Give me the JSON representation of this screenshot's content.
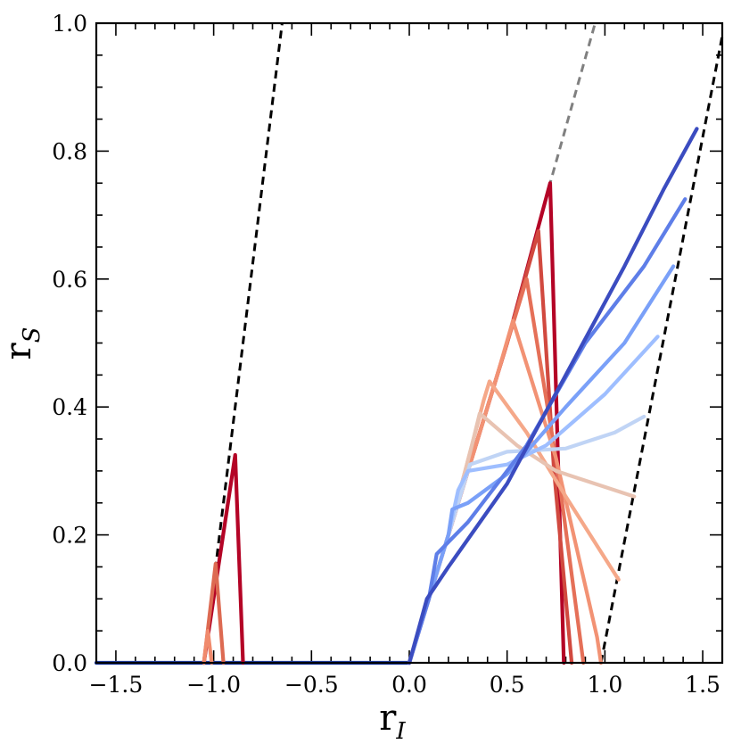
{
  "chart_data": {
    "type": "line",
    "xlabel": "r",
    "xlabel_sub": "I",
    "ylabel": "r",
    "ylabel_sub": "S",
    "xlim": [
      -1.6,
      1.6
    ],
    "ylim": [
      0.0,
      1.0
    ],
    "xticks": [
      -1.5,
      -1.0,
      -0.5,
      0.0,
      0.5,
      1.0,
      1.5
    ],
    "xtick_labels": [
      "−1.5",
      "−1.0",
      "−0.5",
      "0.0",
      "0.5",
      "1.0",
      "1.5"
    ],
    "yticks": [
      0.0,
      0.2,
      0.4,
      0.6,
      0.8,
      1.0
    ],
    "ytick_labels": [
      "0.0",
      "0.2",
      "0.4",
      "0.6",
      "0.8",
      "1.0"
    ],
    "grid": false,
    "legend": "none",
    "series": [
      {
        "color": "#000000",
        "dash": true,
        "points": [
          [
            -1.05,
            0.0
          ],
          [
            -0.65,
            1.0
          ]
        ]
      },
      {
        "color": "#808080",
        "dash": true,
        "points": [
          [
            0.0,
            0.0
          ],
          [
            0.1,
            0.1
          ],
          [
            0.2,
            0.2
          ],
          [
            0.5,
            0.5
          ],
          [
            0.72,
            0.75
          ],
          [
            0.95,
            1.0
          ]
        ]
      },
      {
        "color": "#000000",
        "dash": true,
        "points": [
          [
            0.98,
            0.0
          ],
          [
            1.6,
            0.98
          ]
        ]
      },
      {
        "color": "#1f3fa8",
        "points": [
          [
            -1.6,
            0.0
          ],
          [
            0.0,
            0.0
          ]
        ]
      },
      {
        "color": "#b40426",
        "points": [
          [
            -1.05,
            0.0
          ],
          [
            -0.89,
            0.325
          ],
          [
            -0.85,
            0.0
          ]
        ]
      },
      {
        "color": "#dd6a52",
        "points": [
          [
            -1.05,
            0.0
          ],
          [
            -0.99,
            0.155
          ],
          [
            -0.95,
            0.0
          ]
        ]
      },
      {
        "color": "#f08a6c",
        "points": [
          [
            -1.05,
            0.0
          ],
          [
            -1.03,
            0.05
          ],
          [
            -1.01,
            0.0
          ]
        ]
      },
      {
        "color": "#b40426",
        "points": [
          [
            0.0,
            0.0
          ],
          [
            0.2,
            0.2
          ],
          [
            0.5,
            0.5
          ],
          [
            0.72,
            0.75
          ],
          [
            0.79,
            0.0
          ]
        ]
      },
      {
        "color": "#d1493f",
        "points": [
          [
            0.0,
            0.0
          ],
          [
            0.2,
            0.2
          ],
          [
            0.5,
            0.5
          ],
          [
            0.66,
            0.675
          ],
          [
            0.74,
            0.3
          ],
          [
            0.83,
            0.0
          ]
        ]
      },
      {
        "color": "#e57058",
        "points": [
          [
            0.0,
            0.0
          ],
          [
            0.2,
            0.2
          ],
          [
            0.5,
            0.5
          ],
          [
            0.6,
            0.6
          ],
          [
            0.76,
            0.3
          ],
          [
            0.89,
            0.0
          ]
        ]
      },
      {
        "color": "#f29274",
        "points": [
          [
            0.0,
            0.0
          ],
          [
            0.2,
            0.2
          ],
          [
            0.45,
            0.45
          ],
          [
            0.53,
            0.535
          ],
          [
            0.75,
            0.32
          ],
          [
            0.96,
            0.04
          ],
          [
            0.98,
            0.0
          ]
        ]
      },
      {
        "color": "#f5a889",
        "points": [
          [
            0.0,
            0.0
          ],
          [
            0.2,
            0.2
          ],
          [
            0.38,
            0.41
          ],
          [
            0.41,
            0.44
          ],
          [
            0.6,
            0.36
          ],
          [
            0.8,
            0.26
          ],
          [
            1.07,
            0.13
          ]
        ]
      },
      {
        "color": "#e8c3b2",
        "points": [
          [
            0.0,
            0.0
          ],
          [
            0.2,
            0.2
          ],
          [
            0.32,
            0.34
          ],
          [
            0.36,
            0.39
          ],
          [
            0.55,
            0.34
          ],
          [
            0.75,
            0.3
          ],
          [
            1.15,
            0.26
          ]
        ]
      },
      {
        "color": "#c0d4f5",
        "points": [
          [
            0.0,
            0.0
          ],
          [
            0.2,
            0.2
          ],
          [
            0.29,
            0.29
          ],
          [
            0.31,
            0.31
          ],
          [
            0.5,
            0.33
          ],
          [
            0.8,
            0.335
          ],
          [
            1.05,
            0.36
          ],
          [
            1.2,
            0.385
          ]
        ]
      },
      {
        "color": "#9ebeff",
        "points": [
          [
            0.0,
            0.0
          ],
          [
            0.2,
            0.2
          ],
          [
            0.25,
            0.27
          ],
          [
            0.3,
            0.3
          ],
          [
            0.5,
            0.31
          ],
          [
            0.7,
            0.34
          ],
          [
            1.0,
            0.42
          ],
          [
            1.27,
            0.51
          ]
        ]
      },
      {
        "color": "#7aa0f8",
        "points": [
          [
            0.0,
            0.0
          ],
          [
            0.2,
            0.2
          ],
          [
            0.22,
            0.24
          ],
          [
            0.3,
            0.25
          ],
          [
            0.5,
            0.295
          ],
          [
            0.8,
            0.4
          ],
          [
            1.1,
            0.5
          ],
          [
            1.35,
            0.62
          ]
        ]
      },
      {
        "color": "#5e7ee8",
        "points": [
          [
            0.0,
            0.0
          ],
          [
            0.1,
            0.1
          ],
          [
            0.14,
            0.17
          ],
          [
            0.3,
            0.22
          ],
          [
            0.6,
            0.34
          ],
          [
            0.9,
            0.5
          ],
          [
            1.2,
            0.62
          ],
          [
            1.41,
            0.725
          ]
        ]
      },
      {
        "color": "#3b4cc0",
        "points": [
          [
            0.0,
            0.0
          ],
          [
            0.09,
            0.1
          ],
          [
            0.2,
            0.15
          ],
          [
            0.5,
            0.28
          ],
          [
            0.8,
            0.45
          ],
          [
            1.1,
            0.62
          ],
          [
            1.3,
            0.74
          ],
          [
            1.47,
            0.835
          ]
        ]
      }
    ]
  }
}
